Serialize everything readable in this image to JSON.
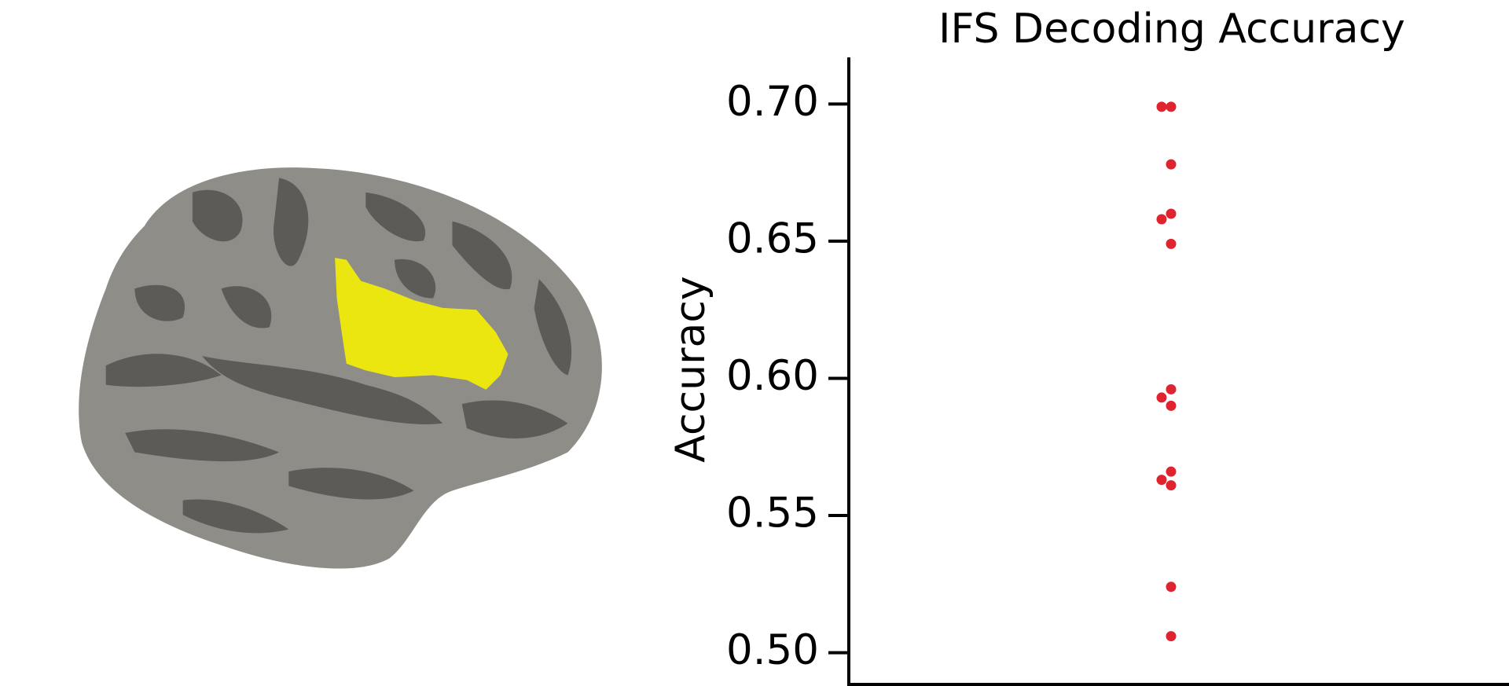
{
  "chart_data": {
    "type": "strip",
    "title": "IFS Decoding Accuracy",
    "y_label": "Accuracy",
    "values": [
      0.699,
      0.699,
      0.678,
      0.66,
      0.658,
      0.649,
      0.596,
      0.593,
      0.59,
      0.566,
      0.563,
      0.561,
      0.524,
      0.506
    ],
    "color": "#e0242f",
    "ylim": [
      0.489,
      0.717
    ],
    "yticks": [
      {
        "value": 0.5,
        "label": "0.50"
      },
      {
        "value": 0.55,
        "label": "0.55"
      },
      {
        "value": 0.6,
        "label": "0.60"
      },
      {
        "value": 0.65,
        "label": "0.65"
      },
      {
        "value": 0.7,
        "label": "0.70"
      }
    ]
  }
}
